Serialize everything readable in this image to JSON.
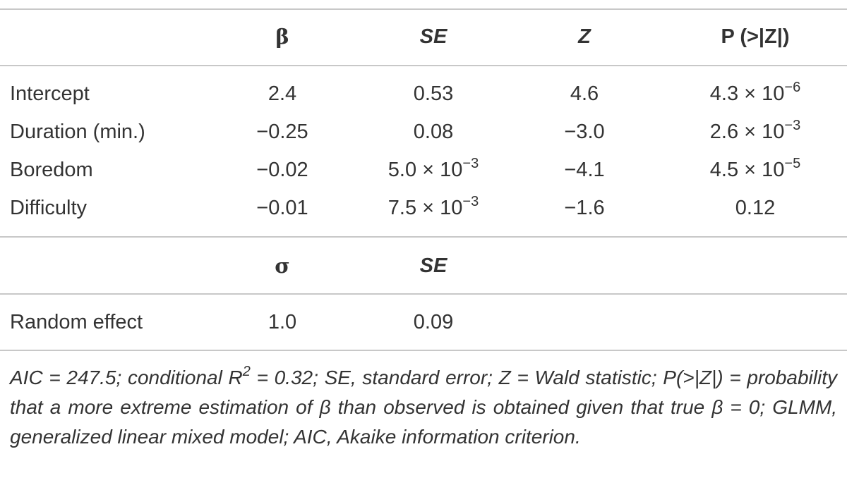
{
  "table": {
    "columns": [
      "β",
      "SE",
      "Z",
      "P (>|Z|)"
    ],
    "rows": [
      {
        "label": "Intercept",
        "cells": [
          "2.4",
          "0.53",
          "4.6",
          {
            "base": "4.3 × 10",
            "exp": "−6"
          }
        ]
      },
      {
        "label": "Duration (min.)",
        "cells": [
          "−0.25",
          "0.08",
          "−3.0",
          {
            "base": "2.6 × 10",
            "exp": "−3"
          }
        ]
      },
      {
        "label": "Boredom",
        "cells": [
          "−0.02",
          {
            "base": "5.0 × 10",
            "exp": "−3"
          },
          "−4.1",
          {
            "base": "4.5 × 10",
            "exp": "−5"
          }
        ]
      },
      {
        "label": "Difficulty",
        "cells": [
          "−0.01",
          {
            "base": "7.5 × 10",
            "exp": "−3"
          },
          "−1.6",
          "0.12"
        ]
      }
    ],
    "random_columns": [
      "σ",
      "SE"
    ],
    "random_rows": [
      {
        "label": "Random effect",
        "cells": [
          "1.0",
          "0.09"
        ]
      }
    ]
  },
  "footnote": {
    "parts": [
      "AIC = 247.5; conditional R",
      "2",
      " = 0.32; SE, standard error; Z = Wald statistic; P(>|Z|) = probability that a more extreme estimation of β than observed is obtained given that true β = 0; GLMM, generalized linear mixed model; AIC, Akaike information criterion."
    ]
  }
}
